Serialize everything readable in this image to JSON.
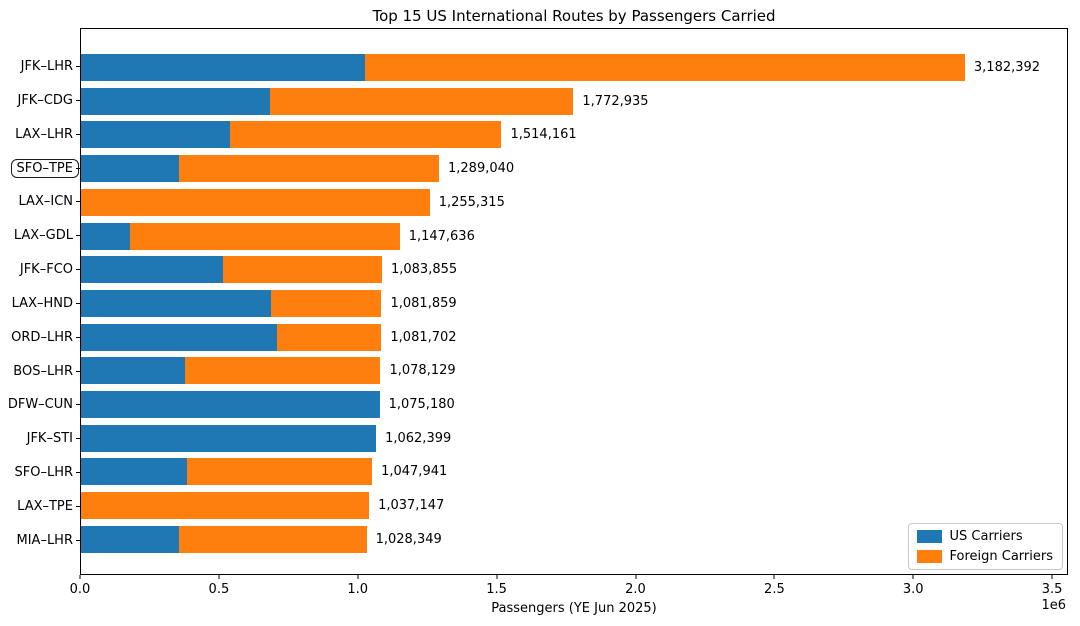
{
  "chart_data": {
    "type": "bar",
    "orientation": "horizontal",
    "stacked": true,
    "title": "Top 15 US International Routes by Passengers Carried",
    "xlabel": "Passengers (YE Jun 2025)",
    "x_offset_label": "1e6",
    "xlim": [
      0,
      3550000
    ],
    "grid": false,
    "xticks": {
      "values": [
        0,
        500000,
        1000000,
        1500000,
        2000000,
        2500000,
        3000000,
        3500000
      ],
      "labels": [
        "0.0",
        "0.5",
        "1.0",
        "1.5",
        "2.0",
        "2.5",
        "3.0",
        "3.5"
      ]
    },
    "categories": [
      "JFK–LHR",
      "JFK–CDG",
      "LAX–LHR",
      "SFO–TPE",
      "LAX–ICN",
      "LAX–GDL",
      "JFK–FCO",
      "LAX–HND",
      "ORD–LHR",
      "BOS–LHR",
      "DFW–CUN",
      "JFK–STI",
      "SFO–LHR",
      "LAX–TPE",
      "MIA–LHR"
    ],
    "highlighted_category": "SFO–TPE",
    "series": [
      {
        "name": "US Carriers",
        "color": "#1f77b4",
        "values": [
          1022000,
          679000,
          537000,
          351000,
          0,
          175000,
          512000,
          685000,
          706000,
          374000,
          1075180,
          1062399,
          382000,
          0,
          353000
        ]
      },
      {
        "name": "Foreign Carriers",
        "color": "#ff7f0e",
        "values": [
          2160392,
          1093935,
          977161,
          938040,
          1255315,
          972636,
          571855,
          396859,
          375702,
          704129,
          0,
          0,
          665941,
          1037147,
          675349
        ]
      }
    ],
    "totals": [
      3182392,
      1772935,
      1514161,
      1289040,
      1255315,
      1147636,
      1083855,
      1081859,
      1081702,
      1078129,
      1075180,
      1062399,
      1047941,
      1037147,
      1028349
    ],
    "total_labels": [
      "3,182,392",
      "1,772,935",
      "1,514,161",
      "1,289,040",
      "1,255,315",
      "1,147,636",
      "1,083,855",
      "1,081,859",
      "1,081,702",
      "1,078,129",
      "1,075,180",
      "1,062,399",
      "1,047,941",
      "1,037,147",
      "1,028,349"
    ],
    "legend": {
      "position": "lower right",
      "entries": [
        {
          "label": "US Carriers",
          "color": "#1f77b4"
        },
        {
          "label": "Foreign Carriers",
          "color": "#ff7f0e"
        }
      ]
    }
  }
}
